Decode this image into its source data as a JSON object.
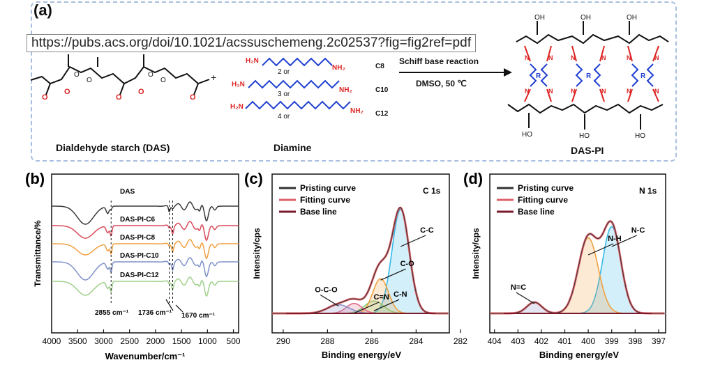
{
  "tooltip": "https://pubs.acs.org/doi/10.1021/acssuschemeng.2c02537?fig=fig2ref=pdf",
  "panel_a": {
    "label": "(a)",
    "das_label": "Dialdehyde starch (DAS)",
    "diamine_label": "Diamine",
    "product_label": "DAS-PI",
    "reaction_top": "Schiff base reaction",
    "reaction_bottom": "DMSO, 50 ℃",
    "plus": "+",
    "chains": [
      {
        "n": "2 or",
        "code": "C8"
      },
      {
        "n": "3 or",
        "code": "C10"
      },
      {
        "n": "4 or",
        "code": "C12"
      }
    ],
    "h2n": "H₂N",
    "nh2": "NH₂",
    "oh": "OH",
    "ho": "HO",
    "r": "R",
    "n": "N",
    "o": "O"
  },
  "chart_data": [
    {
      "panel": "(b)",
      "type": "line",
      "xlabel": "Wavenumber/cm⁻¹",
      "ylabel": "Transmittance/%",
      "xlim": [
        4000,
        400
      ],
      "xticks": [
        4000,
        3500,
        3000,
        2500,
        2000,
        1500,
        1000,
        500
      ],
      "series": [
        {
          "name": "DAS",
          "color": "#3a3a3a"
        },
        {
          "name": "DAS-PI-C6",
          "color": "#d94a5a"
        },
        {
          "name": "DAS-PI-C8",
          "color": "#f0a040"
        },
        {
          "name": "DAS-PI-C10",
          "color": "#7f92c8"
        },
        {
          "name": "DAS-PI-C12",
          "color": "#9fd08a"
        }
      ],
      "annotations": [
        "2855 cm⁻¹",
        "1736 cm⁻¹",
        "1670 cm⁻¹"
      ],
      "guide_lines_x": [
        2855,
        1736,
        1670
      ]
    },
    {
      "panel": "(c)",
      "type": "area",
      "title": "C 1s",
      "xlabel": "Binding energy/eV",
      "ylabel": "Intensity/cps",
      "xlim": [
        290.5,
        282.5
      ],
      "xticks": [
        290,
        288,
        286,
        284,
        282
      ],
      "legend": [
        "Pristing curve",
        "Fitting curve",
        "Base line"
      ],
      "legend_colors": [
        "#333333",
        "#e0606a",
        "#7a1a2a"
      ],
      "peaks": [
        {
          "label": "C-C",
          "center": 284.7,
          "height": 0.84,
          "width": 0.55,
          "color": "#35b8e8"
        },
        {
          "label": "C-N",
          "center": 285.9,
          "height": 0.1,
          "width": 0.6,
          "color": "#7fd07a"
        },
        {
          "label": "C-O",
          "center": 285.6,
          "height": 0.28,
          "width": 0.5,
          "color": "#f0a040"
        },
        {
          "label": "C=N",
          "center": 286.8,
          "height": 0.08,
          "width": 0.5,
          "color": "#e06a8a"
        },
        {
          "label": "O-C-O",
          "center": 287.5,
          "height": 0.07,
          "width": 0.7,
          "color": "#8a8fc8"
        }
      ]
    },
    {
      "panel": "(d)",
      "type": "area",
      "title": "N 1s",
      "xlabel": "Binding energy/eV",
      "ylabel": "Intensity/cps",
      "xlim": [
        404.2,
        396.7
      ],
      "xticks": [
        404,
        403,
        402,
        401,
        400,
        399,
        398,
        397
      ],
      "legend": [
        "Pristing curve",
        "Fitting curve",
        "Base line"
      ],
      "legend_colors": [
        "#333333",
        "#e0606a",
        "#7a1a2a"
      ],
      "peaks": [
        {
          "label": "N-C",
          "center": 399.0,
          "height": 0.7,
          "width": 0.55,
          "color": "#35b8e8"
        },
        {
          "label": "N-H",
          "center": 400.0,
          "height": 0.61,
          "width": 0.6,
          "color": "#f0a040"
        },
        {
          "label": "N=C",
          "center": 402.3,
          "height": 0.09,
          "width": 0.45,
          "color": "#8a8fc8"
        }
      ]
    }
  ]
}
